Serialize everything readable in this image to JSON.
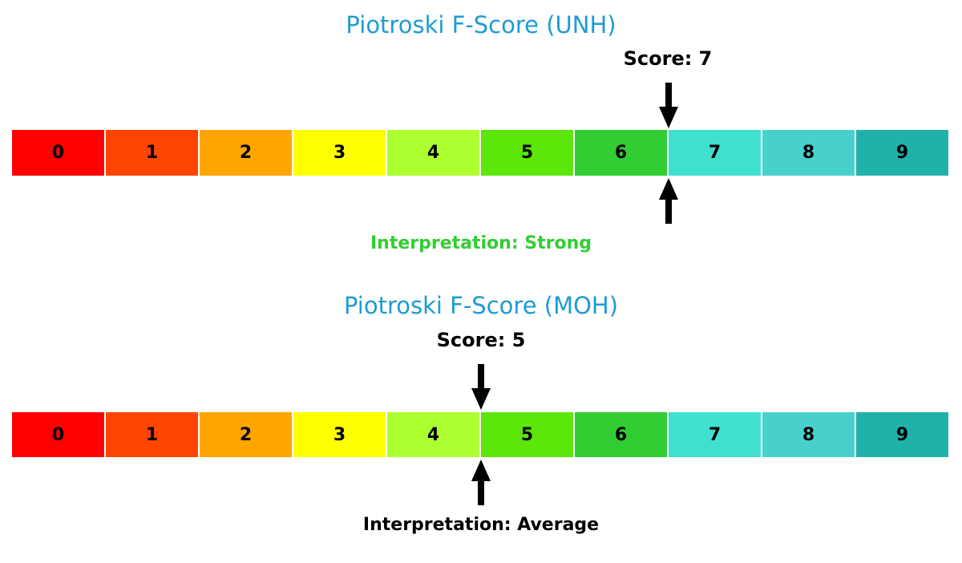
{
  "colors": {
    "title": "#1E9BD2",
    "arrow": "#000000",
    "background": "#FFFFFF",
    "segment_colors": [
      "#FF0000",
      "#FF4500",
      "#FFA500",
      "#FFFF00",
      "#ADFF2F",
      "#5CE60A",
      "#32CD32",
      "#40E0D0",
      "#48D1CC",
      "#20B2AA"
    ]
  },
  "charts": [
    {
      "title": "Piotroski F-Score (UNH)",
      "score": 7,
      "score_label": "Score: 7",
      "interpretation": "Interpretation: Strong",
      "interpretation_color": "#32CD32",
      "segments": [
        "0",
        "1",
        "2",
        "3",
        "4",
        "5",
        "6",
        "7",
        "8",
        "9"
      ]
    },
    {
      "title": "Piotroski F-Score (MOH)",
      "score": 5,
      "score_label": "Score: 5",
      "interpretation": "Interpretation: Average",
      "interpretation_color": "#000000",
      "segments": [
        "0",
        "1",
        "2",
        "3",
        "4",
        "5",
        "6",
        "7",
        "8",
        "9"
      ]
    }
  ],
  "chart_data": [
    {
      "type": "bar",
      "title": "Piotroski F-Score (UNH)",
      "categories": [
        "0",
        "1",
        "2",
        "3",
        "4",
        "5",
        "6",
        "7",
        "8",
        "9"
      ],
      "values": [
        1,
        1,
        1,
        1,
        1,
        1,
        1,
        1,
        1,
        1
      ],
      "score": 7,
      "marker_position": 7,
      "annotations": [
        "Score: 7",
        "Interpretation: Strong"
      ],
      "segment_colors": [
        "#FF0000",
        "#FF4500",
        "#FFA500",
        "#FFFF00",
        "#ADFF2F",
        "#5CE60A",
        "#32CD32",
        "#40E0D0",
        "#48D1CC",
        "#20B2AA"
      ],
      "xlim": [
        0,
        10
      ],
      "legend": false,
      "grid": false
    },
    {
      "type": "bar",
      "title": "Piotroski F-Score (MOH)",
      "categories": [
        "0",
        "1",
        "2",
        "3",
        "4",
        "5",
        "6",
        "7",
        "8",
        "9"
      ],
      "values": [
        1,
        1,
        1,
        1,
        1,
        1,
        1,
        1,
        1,
        1
      ],
      "score": 5,
      "marker_position": 5,
      "annotations": [
        "Score: 5",
        "Interpretation: Average"
      ],
      "segment_colors": [
        "#FF0000",
        "#FF4500",
        "#FFA500",
        "#FFFF00",
        "#ADFF2F",
        "#5CE60A",
        "#32CD32",
        "#40E0D0",
        "#48D1CC",
        "#20B2AA"
      ],
      "xlim": [
        0,
        10
      ],
      "legend": false,
      "grid": false
    }
  ]
}
